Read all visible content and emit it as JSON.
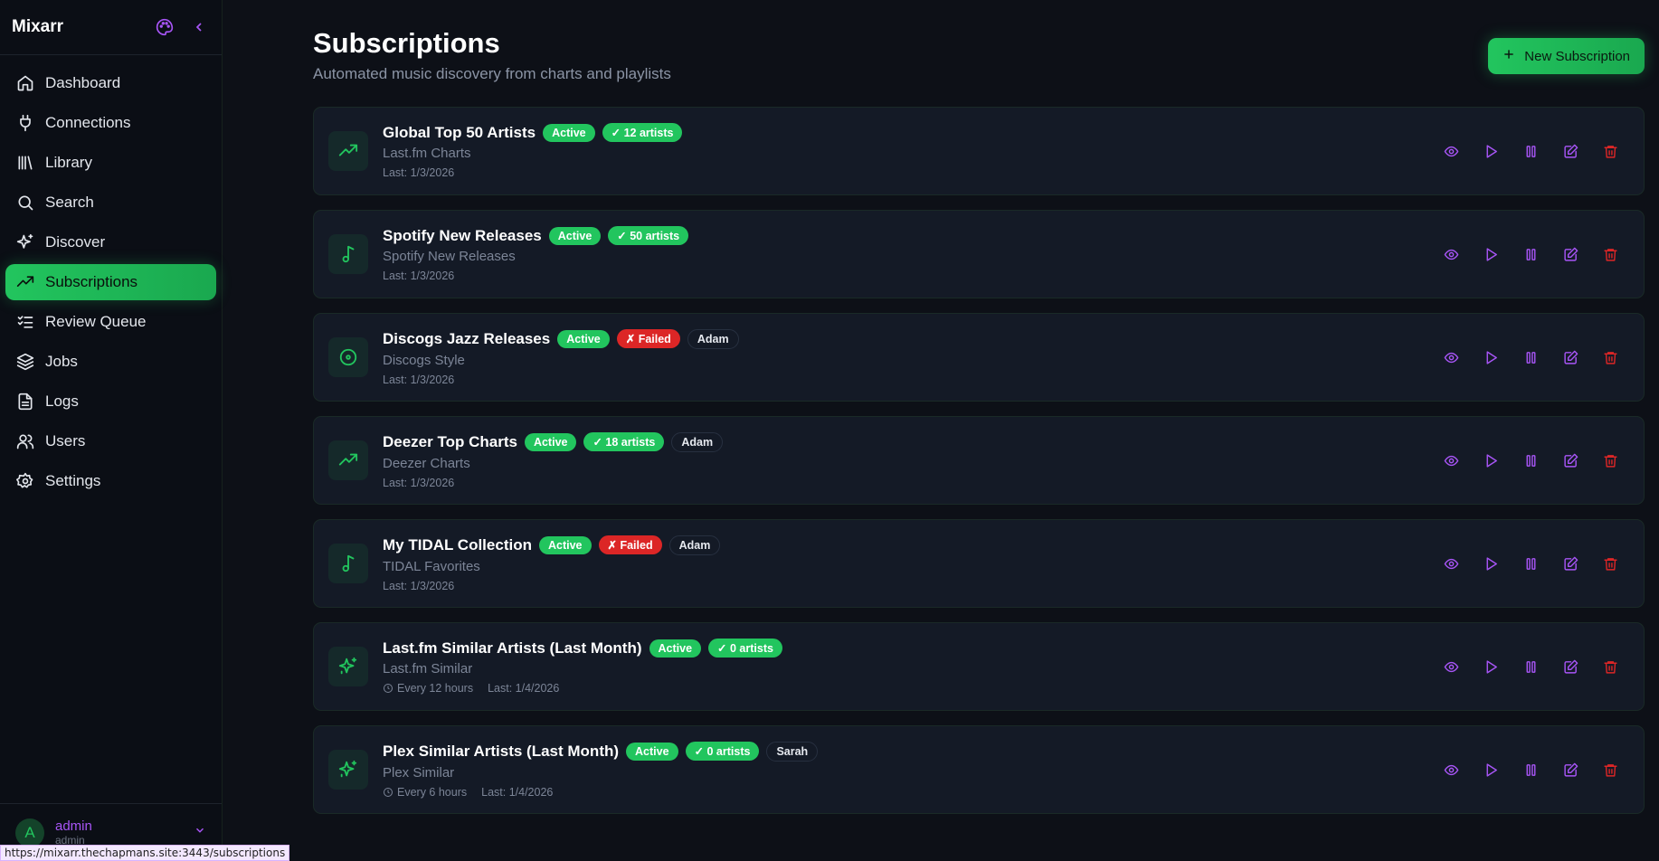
{
  "app": {
    "name": "Mixarr"
  },
  "sidebar": {
    "items": [
      {
        "label": "Dashboard",
        "icon": "home-icon"
      },
      {
        "label": "Connections",
        "icon": "plug-icon"
      },
      {
        "label": "Library",
        "icon": "library-icon"
      },
      {
        "label": "Search",
        "icon": "search-icon"
      },
      {
        "label": "Discover",
        "icon": "sparkles-icon"
      },
      {
        "label": "Subscriptions",
        "icon": "trending-up-icon",
        "active": true
      },
      {
        "label": "Review Queue",
        "icon": "list-checks-icon"
      },
      {
        "label": "Jobs",
        "icon": "layers-icon"
      },
      {
        "label": "Logs",
        "icon": "file-text-icon"
      },
      {
        "label": "Users",
        "icon": "users-icon"
      },
      {
        "label": "Settings",
        "icon": "gear-icon"
      }
    ],
    "user": {
      "initial": "A",
      "name": "admin",
      "role": "admin"
    }
  },
  "status_url": "https://mixarr.thechapmans.site:3443/subscriptions",
  "header": {
    "title": "Subscriptions",
    "subtitle": "Automated music discovery from charts and playlists",
    "new_button": "New Subscription"
  },
  "colors": {
    "accent": "#22c55e",
    "action": "#a855f7",
    "danger": "#dc2626"
  },
  "subscriptions": [
    {
      "icon": "trending-up",
      "title": "Global Top 50 Artists",
      "status": "Active",
      "result": "✓ 12 artists",
      "failed": false,
      "owner": "",
      "source": "Last.fm Charts",
      "schedule": "",
      "last": "Last: 1/3/2026"
    },
    {
      "icon": "music",
      "title": "Spotify New Releases",
      "status": "Active",
      "result": "✓ 50 artists",
      "failed": false,
      "owner": "",
      "source": "Spotify New Releases",
      "schedule": "",
      "last": "Last: 1/3/2026"
    },
    {
      "icon": "disc",
      "title": "Discogs Jazz Releases",
      "status": "Active",
      "result": "✗ Failed",
      "failed": true,
      "owner": "Adam",
      "source": "Discogs Style",
      "schedule": "",
      "last": "Last: 1/3/2026"
    },
    {
      "icon": "trending-up",
      "title": "Deezer Top Charts",
      "status": "Active",
      "result": "✓ 18 artists",
      "failed": false,
      "owner": "Adam",
      "source": "Deezer Charts",
      "schedule": "",
      "last": "Last: 1/3/2026"
    },
    {
      "icon": "music",
      "title": "My TIDAL Collection",
      "status": "Active",
      "result": "✗ Failed",
      "failed": true,
      "owner": "Adam",
      "source": "TIDAL Favorites",
      "schedule": "",
      "last": "Last: 1/3/2026"
    },
    {
      "icon": "sparkles",
      "title": "Last.fm Similar Artists (Last Month)",
      "status": "Active",
      "result": "✓ 0 artists",
      "failed": false,
      "owner": "",
      "source": "Last.fm Similar",
      "schedule": "Every 12 hours",
      "last": "Last: 1/4/2026"
    },
    {
      "icon": "sparkles",
      "title": "Plex Similar Artists (Last Month)",
      "status": "Active",
      "result": "✓ 0 artists",
      "failed": false,
      "owner": "Sarah",
      "source": "Plex Similar",
      "schedule": "Every 6 hours",
      "last": "Last: 1/4/2026"
    }
  ]
}
